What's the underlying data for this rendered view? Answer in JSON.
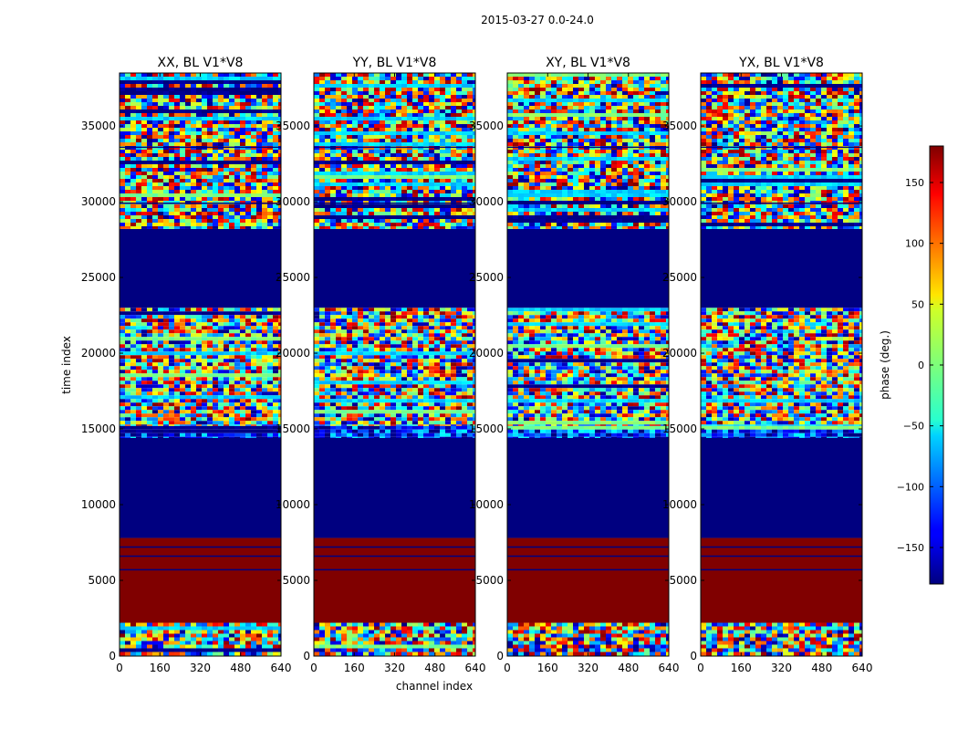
{
  "figure": {
    "suptitle": "2015-03-27 0.0-24.0",
    "xlabel": "channel index",
    "ylabel": "time index"
  },
  "colorbar": {
    "label": "phase (deg.)",
    "ticks": [
      150,
      100,
      50,
      0,
      -50,
      -100,
      -150
    ],
    "tick_labels": [
      "150",
      "100",
      "50",
      "0",
      "−50",
      "−100",
      "−150"
    ],
    "range": [
      -180,
      180
    ],
    "colormap": "jet"
  },
  "chart_data": {
    "type": "heatmap",
    "title": "2015-03-27 0.0-24.0",
    "xlabel": "channel index",
    "ylabel": "time index",
    "value_label": "phase (deg.)",
    "value_range": [
      -180,
      180
    ],
    "xlim": [
      0,
      640
    ],
    "ylim": [
      0,
      38500
    ],
    "x_ticks": [
      0,
      160,
      320,
      480,
      640
    ],
    "y_ticks": [
      0,
      5000,
      10000,
      15000,
      20000,
      25000,
      30000,
      35000
    ],
    "panels": [
      {
        "title": "XX, BL V1*V8",
        "pol": "XX",
        "baseline": "V1*V8"
      },
      {
        "title": "YY, BL V1*V8",
        "pol": "YY",
        "baseline": "V1*V8"
      },
      {
        "title": "XY, BL V1*V8",
        "pol": "XY",
        "baseline": "V1*V8"
      },
      {
        "title": "YX, BL V1*V8",
        "pol": "YX",
        "baseline": "V1*V8"
      }
    ],
    "bands": [
      {
        "from": 0,
        "to": 2200,
        "kind": "noise",
        "mean": 0
      },
      {
        "from": 2200,
        "to": 7800,
        "kind": "constant",
        "value": 180
      },
      {
        "from": 7800,
        "to": 14400,
        "kind": "constant",
        "value": -180
      },
      {
        "from": 14400,
        "to": 15200,
        "kind": "noise",
        "mean": -120
      },
      {
        "from": 15200,
        "to": 23000,
        "kind": "noise",
        "mean": 0
      },
      {
        "from": 23000,
        "to": 28200,
        "kind": "constant",
        "value": -180
      },
      {
        "from": 28200,
        "to": 38500,
        "kind": "noise",
        "mean": 0
      }
    ]
  }
}
